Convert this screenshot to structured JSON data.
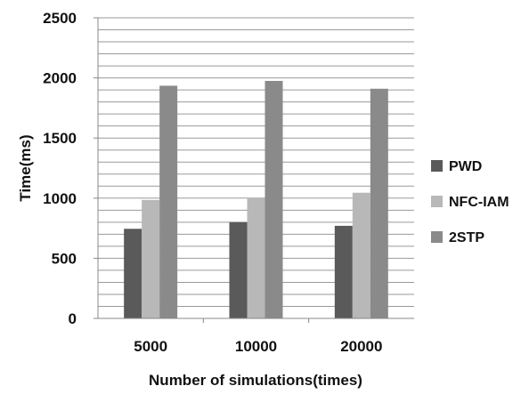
{
  "chart_data": {
    "type": "bar",
    "categories": [
      "5000",
      "10000",
      "20000"
    ],
    "series": [
      {
        "name": "PWD",
        "values": [
          745,
          800,
          770
        ],
        "color": "#5a5a5a"
      },
      {
        "name": "NFC-IAM",
        "values": [
          985,
          1000,
          1045
        ],
        "color": "#b8b8b8"
      },
      {
        "name": "2STP",
        "values": [
          1935,
          1975,
          1910
        ],
        "color": "#8a8a8a"
      }
    ],
    "xlabel": "Number of simulations(times)",
    "ylabel": "Time(ms)",
    "ylim": [
      0,
      2500
    ],
    "yticks": [
      "0",
      "500",
      "1000",
      "1500",
      "2000",
      "2500"
    ],
    "minor_gridline_step": 100,
    "grid": true,
    "legend_position": "right"
  }
}
